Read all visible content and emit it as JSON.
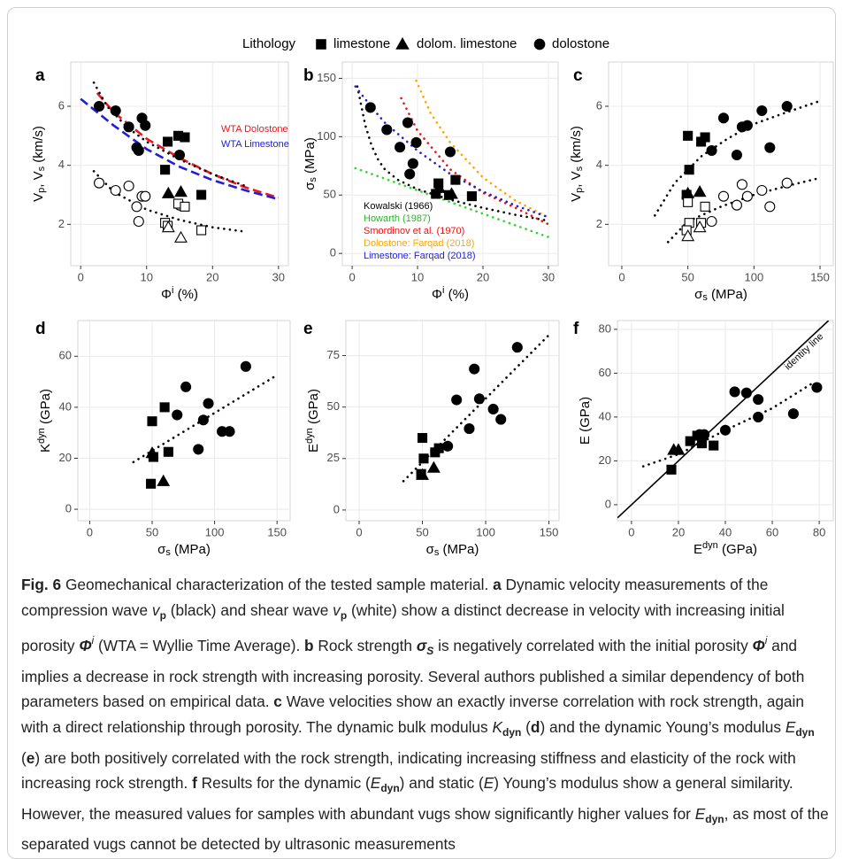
{
  "legend": {
    "title": "Lithology",
    "items": [
      {
        "label": "limestone",
        "marker": "square"
      },
      {
        "label": "dolom. limestone",
        "marker": "triangle"
      },
      {
        "label": "dolostone",
        "marker": "circle"
      }
    ]
  },
  "chart_data": [
    {
      "type": "scatter",
      "label": "a",
      "x_label": [
        "Φ",
        "i",
        "  (%)"
      ],
      "y_label": [
        "V",
        "p",
        ", V",
        "s",
        "  (km/s)"
      ],
      "xlim": [
        -1.5,
        31.5
      ],
      "ylim": [
        0.6,
        7.5
      ],
      "xticks": [
        0,
        10,
        20,
        30
      ],
      "yticks": [
        2,
        4,
        6
      ],
      "grid": true,
      "series": [
        {
          "marker": "circle",
          "filled": true,
          "x": [
            2.8,
            5.3,
            7.3,
            8.5,
            8.8,
            9.3,
            9.8,
            15
          ],
          "values": [
            6.0,
            5.85,
            5.3,
            4.6,
            4.5,
            5.6,
            5.35,
            4.35
          ]
        },
        {
          "marker": "square",
          "filled": true,
          "x": [
            12.8,
            13.2,
            14.8,
            15.8,
            18.3
          ],
          "values": [
            3.85,
            4.8,
            5.0,
            4.95,
            3.0
          ]
        },
        {
          "marker": "triangle",
          "filled": true,
          "x": [
            13.3,
            15.2
          ],
          "values": [
            3.05,
            3.1
          ]
        },
        {
          "marker": "circle",
          "filled": false,
          "x": [
            2.8,
            5.3,
            7.3,
            8.5,
            8.8,
            9.3,
            9.8,
            15
          ],
          "values": [
            3.4,
            3.15,
            3.3,
            2.6,
            2.1,
            2.95,
            2.95,
            2.65
          ]
        },
        {
          "marker": "square",
          "filled": false,
          "x": [
            12.8,
            13.2,
            14.8,
            15.8,
            18.3
          ],
          "values": [
            2.05,
            1.95,
            2.7,
            2.6,
            1.8
          ]
        },
        {
          "marker": "triangle",
          "filled": false,
          "x": [
            13.3,
            15.2
          ],
          "values": [
            1.9,
            1.55
          ]
        },
        {
          "style": "dashed",
          "color": "#e8191f",
          "x": [
            2.5,
            5,
            10,
            15,
            20,
            25,
            30
          ],
          "values": [
            6.45,
            5.8,
            4.9,
            4.25,
            3.7,
            3.25,
            2.9
          ]
        },
        {
          "style": "dashed",
          "color": "#1f1fd6",
          "x": [
            0,
            5,
            10,
            15,
            20,
            25,
            30
          ],
          "values": [
            6.25,
            5.35,
            4.55,
            3.95,
            3.5,
            3.15,
            2.85
          ]
        },
        {
          "style": "dotted",
          "color": "#000000",
          "x": [
            2,
            4,
            7,
            10,
            15,
            20,
            25
          ],
          "values": [
            6.8,
            6.0,
            5.3,
            4.8,
            4.2,
            3.7,
            3.3
          ]
        },
        {
          "style": "dotted",
          "color": "#000000",
          "x": [
            2,
            5,
            10,
            15,
            20,
            25
          ],
          "values": [
            3.8,
            3.1,
            2.5,
            2.15,
            1.9,
            1.75
          ]
        }
      ],
      "annotations": [
        {
          "text": "WTA Dolostone",
          "color": "#e8191f"
        },
        {
          "text": "WTA Limestone",
          "color": "#1f1fd6"
        }
      ]
    },
    {
      "type": "scatter",
      "label": "b",
      "x_label": [
        "Φ",
        "i",
        "  (%)"
      ],
      "y_label": [
        "σ",
        "s",
        "  (MPa)"
      ],
      "xlim": [
        -1.5,
        31.5
      ],
      "ylim": [
        -10.5,
        164
      ],
      "xticks": [
        0,
        10,
        20,
        30
      ],
      "yticks": [
        0,
        50,
        100,
        150
      ],
      "grid": true,
      "series": [
        {
          "marker": "circle",
          "filled": true,
          "x": [
            2.8,
            5.3,
            7.3,
            8.5,
            8.8,
            9.3,
            9.8,
            15
          ],
          "values": [
            125,
            106,
            91,
            112,
            68,
            77,
            95,
            87
          ]
        },
        {
          "marker": "square",
          "filled": true,
          "x": [
            12.8,
            13.2,
            14.8,
            15.8,
            18.3
          ],
          "values": [
            51,
            60,
            50,
            63,
            49
          ]
        },
        {
          "marker": "triangle",
          "filled": true,
          "x": [
            13.3,
            15.2
          ],
          "values": [
            56,
            51
          ]
        },
        {
          "style": "dotted",
          "color": "#000000",
          "x": [
            0.8,
            2,
            3,
            4,
            5,
            7,
            10,
            15,
            20,
            25,
            30
          ],
          "values": [
            143,
            110,
            92,
            80,
            72,
            63,
            55,
            46,
            39,
            33,
            28
          ]
        },
        {
          "style": "dotted",
          "color": "#22dd22",
          "x": [
            0.5,
            30
          ],
          "values": [
            73,
            14
          ]
        },
        {
          "style": "dotted",
          "color": "#ee1111",
          "x": [
            7.5,
            10,
            15,
            20,
            25,
            30
          ],
          "values": [
            133,
            105,
            72,
            52,
            39,
            25
          ]
        },
        {
          "style": "dotted",
          "color": "#ffa500",
          "x": [
            9.8,
            12,
            15,
            20,
            25,
            30
          ],
          "values": [
            148,
            120,
            95,
            65,
            45,
            31
          ]
        },
        {
          "style": "dotted",
          "color": "#1f1fd6",
          "x": [
            0.5,
            3,
            5,
            10,
            15,
            20,
            25,
            30
          ],
          "values": [
            143,
            125,
            112,
            88,
            68,
            53,
            41,
            31
          ]
        }
      ],
      "annotations": [
        {
          "text": "Kowalski (1966)",
          "color": "#000000"
        },
        {
          "text": "Howarth (1987)",
          "color": "#22bb22"
        },
        {
          "text": "Smordinov et al. (1970)",
          "color": "#ee1111"
        },
        {
          "text": "Dolostone: Farqad (2018)",
          "color": "#ffa500"
        },
        {
          "text": "Limestone: Farqad (2018)",
          "color": "#1f1fd6"
        }
      ]
    },
    {
      "type": "scatter",
      "label": "c",
      "x_label": [
        "σ",
        "s",
        "  (MPa)"
      ],
      "y_label": [
        "V",
        "p",
        ", V",
        "s",
        "  (km/s)"
      ],
      "xlim": [
        -10,
        160
      ],
      "ylim": [
        0.6,
        7.5
      ],
      "xticks": [
        0,
        50,
        100,
        150
      ],
      "yticks": [
        2,
        4,
        6
      ],
      "grid": true,
      "series": [
        {
          "marker": "circle",
          "filled": true,
          "x": [
            125,
            106,
            91,
            112,
            68,
            77,
            95,
            87
          ],
          "values": [
            6.0,
            5.85,
            5.3,
            4.6,
            4.5,
            5.6,
            5.35,
            4.35
          ]
        },
        {
          "marker": "square",
          "filled": true,
          "x": [
            51,
            60,
            50,
            63,
            49
          ],
          "values": [
            3.85,
            4.8,
            5.0,
            4.95,
            3.0
          ]
        },
        {
          "marker": "triangle",
          "filled": true,
          "x": [
            50,
            59
          ],
          "values": [
            3.05,
            3.1
          ]
        },
        {
          "marker": "circle",
          "filled": false,
          "x": [
            125,
            106,
            91,
            112,
            68,
            77,
            95,
            87
          ],
          "values": [
            3.4,
            3.15,
            3.35,
            2.6,
            2.1,
            2.95,
            2.95,
            2.65
          ]
        },
        {
          "marker": "square",
          "filled": false,
          "x": [
            51,
            60,
            50,
            63,
            49
          ],
          "values": [
            2.05,
            2.05,
            2.75,
            2.6,
            1.8
          ]
        },
        {
          "marker": "triangle",
          "filled": false,
          "x": [
            50,
            59
          ],
          "values": [
            1.6,
            1.9
          ]
        },
        {
          "style": "dotted",
          "color": "#000000",
          "x": [
            25,
            40,
            60,
            80,
            100,
            125,
            148
          ],
          "values": [
            2.3,
            3.4,
            4.3,
            4.9,
            5.4,
            5.8,
            6.15
          ]
        },
        {
          "style": "dotted",
          "color": "#000000",
          "x": [
            35,
            50,
            75,
            100,
            125,
            148
          ],
          "values": [
            1.4,
            2.1,
            2.6,
            3.0,
            3.3,
            3.55
          ]
        }
      ]
    },
    {
      "type": "scatter",
      "label": "d",
      "x_label": [
        "σ",
        "s",
        "  (MPa)"
      ],
      "y_label": [
        "K",
        "dyn",
        "  (GPa)"
      ],
      "xlim": [
        -9.5,
        160.5
      ],
      "ylim": [
        -4.5,
        74
      ],
      "xticks": [
        0,
        50,
        100,
        150
      ],
      "yticks": [
        0,
        20,
        40,
        60
      ],
      "grid": true,
      "series": [
        {
          "marker": "circle",
          "filled": true,
          "x": [
            125,
            106,
            91,
            112,
            70,
            77,
            95,
            87
          ],
          "values": [
            56,
            30.5,
            35,
            30.5,
            37,
            48,
            41.5,
            23.5
          ]
        },
        {
          "marker": "square",
          "filled": true,
          "x": [
            51,
            60,
            50,
            63,
            49
          ],
          "values": [
            20.5,
            40,
            34.5,
            22.5,
            10
          ]
        },
        {
          "marker": "triangle",
          "filled": true,
          "x": [
            50,
            59
          ],
          "values": [
            22,
            11
          ]
        },
        {
          "style": "dotted",
          "color": "#000000",
          "x": [
            35,
            148
          ],
          "values": [
            18.5,
            52
          ]
        }
      ]
    },
    {
      "type": "scatter",
      "label": "e",
      "x_label": [
        "σ",
        "s",
        "  (MPa)"
      ],
      "y_label": [
        "E",
        "dyn",
        "  (GPa)"
      ],
      "xlim": [
        -10.5,
        158
      ],
      "ylim": [
        -5.2,
        92
      ],
      "xticks": [
        0,
        50,
        100,
        150
      ],
      "yticks": [
        0,
        25,
        50,
        75
      ],
      "grid": true,
      "series": [
        {
          "marker": "circle",
          "filled": true,
          "x": [
            125,
            91,
            95,
            77,
            106,
            112,
            87,
            70
          ],
          "values": [
            79,
            68.5,
            54,
            53.5,
            49,
            44,
            39.5,
            31
          ]
        },
        {
          "marker": "square",
          "filled": true,
          "x": [
            50,
            51,
            60,
            63,
            49
          ],
          "values": [
            35,
            25,
            28,
            30,
            17.5
          ]
        },
        {
          "marker": "triangle",
          "filled": true,
          "x": [
            50,
            59
          ],
          "values": [
            17,
            20.5
          ]
        },
        {
          "style": "dotted",
          "color": "#000000",
          "x": [
            35,
            150
          ],
          "values": [
            14,
            85
          ]
        }
      ]
    },
    {
      "type": "scatter",
      "label": "f",
      "x_label": [
        "E",
        "dyn",
        "  (GPa)"
      ],
      "y_label": [
        "E",
        "  (GPa)"
      ],
      "xlim": [
        -6,
        86
      ],
      "ylim": [
        -7.3,
        84
      ],
      "xticks": [
        0,
        20,
        40,
        60,
        80
      ],
      "yticks": [
        0,
        20,
        40,
        60,
        80
      ],
      "grid": true,
      "series": [
        {
          "marker": "circle",
          "filled": true,
          "x": [
            29,
            31,
            40,
            44,
            49,
            54,
            54,
            69,
            79
          ],
          "values": [
            32,
            32,
            34,
            51.5,
            51,
            48,
            40,
            41.5,
            53.5
          ]
        },
        {
          "marker": "square",
          "filled": true,
          "x": [
            17,
            25,
            28,
            30,
            35
          ],
          "values": [
            16,
            29,
            31.5,
            28,
            27
          ]
        },
        {
          "marker": "triangle",
          "filled": true,
          "x": [
            18,
            20
          ],
          "values": [
            25,
            25
          ]
        },
        {
          "style": "solid",
          "color": "#000000",
          "x": [
            -6,
            84
          ],
          "values": [
            -6,
            84
          ]
        },
        {
          "style": "dotted",
          "color": "#000000",
          "x": [
            5,
            20,
            40,
            60,
            78
          ],
          "values": [
            17.5,
            23,
            34,
            44,
            56
          ]
        }
      ],
      "annotations": [
        {
          "text": "identity line",
          "color": "#000000"
        }
      ]
    }
  ],
  "caption": [
    "Fig. 6",
    "  Geomechanical characterization of the tested sample material. ",
    "a",
    " Dynamic velocity measurements of the compression wave ",
    "v",
    "p",
    " (black) and shear wave ",
    "v",
    "p",
    " (white) show a distinct decrease in velocity with increasing initial porosity ",
    "Φ",
    "i",
    " (WTA = Wyllie Time Average). ",
    "b",
    " Rock strength ",
    "σ",
    "S",
    " is negatively correlated with the initial porosity ",
    "Φ",
    "i",
    " and implies a decrease in rock strength with increasing porosity. Several authors published a similar dependency of both parameters based on empirical data. ",
    "c",
    " Wave velocities show an exactly inverse correlation with rock strength, again with a direct relationship through porosity. The dynamic bulk modulus ",
    "K",
    "dyn",
    " (",
    "d",
    ") and the dynamic Young’s modulus ",
    "E",
    "dyn",
    " (",
    "e",
    ") are both positively correlated with the rock strength, indicating increasing stiffness and elasticity of the rock with increasing rock strength. ",
    "f",
    " Results for the dynamic (",
    "E",
    "dyn",
    ") and static (",
    "E",
    ") Young’s modulus show a general similarity. However, the measured values for samples with abundant vugs show significantly higher values for ",
    "E",
    "dyn",
    ", as most of the separated vugs cannot be detected by ultrasonic measurements"
  ]
}
